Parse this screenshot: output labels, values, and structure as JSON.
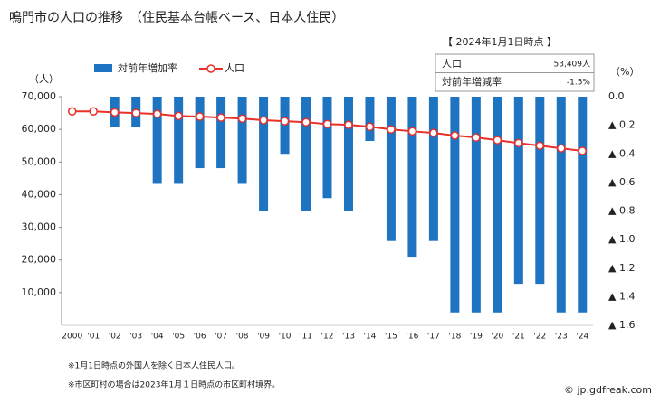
{
  "chart_data": {
    "type": "combo",
    "title": "鳴門市の人口の推移　（住民基本台帳ベース、日本人住民）",
    "y_label": "（人）",
    "y2_label": "（%）",
    "categories": [
      "2000",
      "'01",
      "'02",
      "'03",
      "'04",
      "'05",
      "'06",
      "'07",
      "'08",
      "'09",
      "'10",
      "'11",
      "'12",
      "'13",
      "'14",
      "'15",
      "'16",
      "'17",
      "'18",
      "'19",
      "'20",
      "'21",
      "'22",
      "'23",
      "'24"
    ],
    "ylim": [
      0,
      70000
    ],
    "yticks": [
      {
        "value": 10000,
        "label": "10,000"
      },
      {
        "value": 20000,
        "label": "20,000"
      },
      {
        "value": 30000,
        "label": "30,000"
      },
      {
        "value": 40000,
        "label": "40,000"
      },
      {
        "value": 50000,
        "label": "50,000"
      },
      {
        "value": 60000,
        "label": "60,000"
      },
      {
        "value": 70000,
        "label": "70,000"
      }
    ],
    "y2lim": [
      -1.6,
      0
    ],
    "y2ticks": [
      {
        "value": 0,
        "label": "0.0"
      },
      {
        "value": -0.2,
        "label": "▲ 0.2"
      },
      {
        "value": -0.4,
        "label": "▲ 0.4"
      },
      {
        "value": -0.6,
        "label": "▲ 0.6"
      },
      {
        "value": -0.8,
        "label": "▲ 0.8"
      },
      {
        "value": -1.0,
        "label": "▲ 1.0"
      },
      {
        "value": -1.2,
        "label": "▲ 1.2"
      },
      {
        "value": -1.4,
        "label": "▲ 1.4"
      },
      {
        "value": -1.6,
        "label": "▲ 1.6"
      }
    ],
    "series": [
      {
        "name": "対前年増加率",
        "type": "bar",
        "axis": "y2",
        "color": "#1f74c2",
        "values": [
          null,
          null,
          -0.21,
          -0.21,
          -0.61,
          -0.61,
          -0.5,
          -0.5,
          -0.61,
          -0.8,
          -0.4,
          -0.8,
          -0.71,
          -0.8,
          -0.31,
          -1.01,
          -1.12,
          -1.01,
          -1.51,
          -1.51,
          -1.51,
          -1.31,
          -1.31,
          -1.51,
          -1.51
        ]
      },
      {
        "name": "人口",
        "type": "line",
        "axis": "y",
        "color": "#e8312a",
        "values": [
          65500,
          65500,
          65200,
          65000,
          64700,
          64100,
          63900,
          63600,
          63300,
          62800,
          62500,
          62200,
          61600,
          61400,
          60800,
          60000,
          59400,
          58900,
          58100,
          57500,
          56700,
          55800,
          55000,
          54200,
          53409
        ]
      }
    ]
  },
  "inset": {
    "title": "【 2024年1月1日時点 】",
    "rows": [
      [
        "人口",
        "53,409人"
      ],
      [
        "対前年増減率",
        "-1.5%"
      ]
    ]
  },
  "footnotes": [
    "※1月1日時点の外国人を除く日本人住民人口。",
    "※市区町村の場合は2023年1月１日時点の市区町村境界。"
  ],
  "source": "© jp.gdfreak.com"
}
